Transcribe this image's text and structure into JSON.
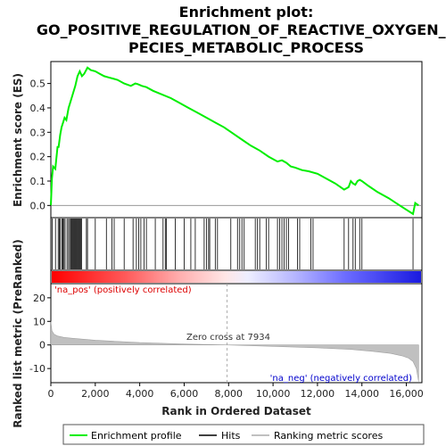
{
  "chart_data": {
    "type": "line",
    "title": [
      "Enrichment plot:",
      "GO_POSITIVE_REGULATION_OF_REACTIVE_OXYGEN_S",
      "PECIES_METABOLIC_PROCESS"
    ],
    "es_panel": {
      "ylabel": "Enrichment score (ES)",
      "ylim": [
        -0.05,
        0.59
      ],
      "yticks": [
        0.0,
        0.1,
        0.2,
        0.3,
        0.4,
        0.5
      ],
      "ytick_labels": [
        "0.0",
        "0.1",
        "0.2",
        "0.3",
        "0.4",
        "0.5"
      ],
      "series": [
        {
          "name": "Enrichment profile",
          "color": "#00ee00",
          "x": [
            0,
            50,
            100,
            200,
            300,
            350,
            420,
            480,
            550,
            620,
            700,
            800,
            900,
            1000,
            1100,
            1200,
            1300,
            1400,
            1500,
            1650,
            1800,
            2000,
            2200,
            2400,
            2600,
            2800,
            3000,
            3300,
            3600,
            3800,
            3900,
            4100,
            4300,
            4600,
            5000,
            5400,
            5800,
            6200,
            6600,
            7000,
            7400,
            7800,
            8200,
            8600,
            9000,
            9400,
            9800,
            10000,
            10200,
            10400,
            10600,
            10800,
            11000,
            11300,
            11600,
            12000,
            12400,
            12800,
            13200,
            13400,
            13500,
            13600,
            13700,
            13800,
            13900,
            14000,
            14300,
            14700,
            15200,
            15700,
            16300,
            16400,
            16550
          ],
          "y": [
            0.0,
            0.11,
            0.16,
            0.15,
            0.24,
            0.24,
            0.29,
            0.32,
            0.34,
            0.36,
            0.35,
            0.4,
            0.43,
            0.46,
            0.49,
            0.53,
            0.55,
            0.53,
            0.54,
            0.565,
            0.555,
            0.55,
            0.54,
            0.53,
            0.525,
            0.52,
            0.515,
            0.5,
            0.49,
            0.5,
            0.498,
            0.49,
            0.485,
            0.47,
            0.455,
            0.44,
            0.42,
            0.4,
            0.38,
            0.36,
            0.34,
            0.32,
            0.295,
            0.27,
            0.245,
            0.225,
            0.2,
            0.19,
            0.18,
            0.185,
            0.175,
            0.16,
            0.155,
            0.145,
            0.14,
            0.13,
            0.11,
            0.09,
            0.065,
            0.075,
            0.1,
            0.09,
            0.085,
            0.1,
            0.105,
            0.1,
            0.08,
            0.055,
            0.03,
            0.0,
            -0.035,
            0.01,
            0.0
          ]
        }
      ]
    },
    "hits_panel": {
      "hit_positions": [
        60,
        210,
        330,
        380,
        430,
        500,
        540,
        590,
        640,
        730,
        800,
        850,
        900,
        940,
        980,
        1020,
        1060,
        1100,
        1140,
        1180,
        1220,
        1260,
        1300,
        1340,
        1380,
        1600,
        1650,
        2000,
        2500,
        2750,
        2850,
        3300,
        3700,
        3850,
        3950,
        4050,
        4200,
        4300,
        4700,
        5050,
        5150,
        5200,
        5600,
        6000,
        6300,
        6500,
        6900,
        7000,
        7100,
        7150,
        7400,
        7500,
        8100,
        8400,
        8500,
        8600,
        8700,
        9200,
        9300,
        9400,
        9700,
        9800,
        10200,
        10300,
        10400,
        10500,
        10600,
        10700,
        11100,
        11200,
        11700,
        11800,
        13200,
        13400,
        13600,
        13700,
        13900,
        14000,
        16300
      ]
    },
    "metric_panel": {
      "ylabel": "Ranked list metric (PreRanked)",
      "ylim": [
        -16,
        26
      ],
      "yticks": [
        -10,
        0,
        10,
        20
      ],
      "ytick_labels": [
        "-10",
        "0",
        "10",
        "20"
      ],
      "curve_x": [
        0,
        50,
        150,
        300,
        600,
        1000,
        2000,
        4000,
        6000,
        7934,
        10000,
        12000,
        13500,
        14500,
        15300,
        15800,
        16100,
        16300,
        16450,
        16550
      ],
      "curve_y": [
        10,
        6,
        4.5,
        3.8,
        3.2,
        2.8,
        2.0,
        1.0,
        0.4,
        0.0,
        -0.6,
        -1.2,
        -1.9,
        -2.7,
        -3.6,
        -4.6,
        -5.6,
        -7,
        -10,
        -15.5
      ],
      "zero_cross_label": "Zero cross at 7934",
      "zero_cross_x": 7934,
      "pos_label": "'na_pos' (positively correlated)",
      "neg_label": "'na_neg' (negatively correlated)"
    },
    "x_axis": {
      "xlabel": "Rank in Ordered Dataset",
      "xlim": [
        0,
        16700
      ],
      "xticks": [
        0,
        2000,
        4000,
        6000,
        8000,
        10000,
        12000,
        14000,
        16000
      ],
      "xtick_labels": [
        "0",
        "2,000",
        "4,000",
        "6,000",
        "8,000",
        "10,000",
        "12,000",
        "14,000",
        "16,000"
      ]
    },
    "legend": {
      "placement": "bottom",
      "items": [
        {
          "label": "Enrichment profile",
          "color": "#00ee00"
        },
        {
          "label": "Hits",
          "color": "#000000"
        },
        {
          "label": "Ranking metric scores",
          "color": "#c0c0c0"
        }
      ]
    },
    "colors": {
      "pos_label": "#dd0000",
      "neg_label": "#0000cc",
      "metric_fill": "#c0c0c0"
    }
  }
}
